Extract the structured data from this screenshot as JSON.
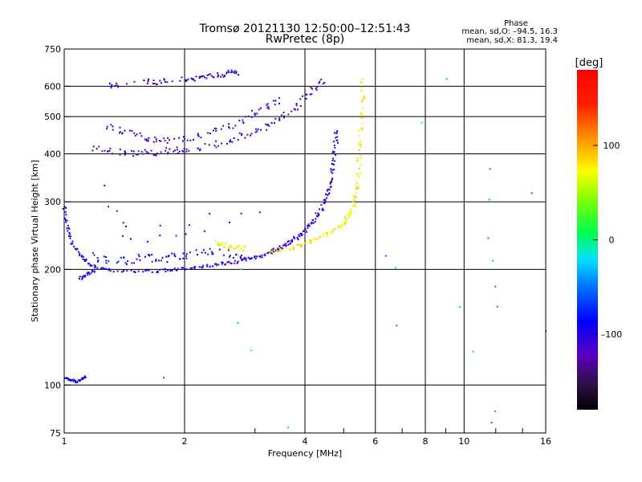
{
  "chart_data": {
    "type": "scatter",
    "title": "Tromsø 20121130 12:50:00–12:51:43",
    "subtitle": "RwPretec (8p)",
    "xlabel": "Frequency [MHz]",
    "ylabel": "Stationary phase Virtual Height [km]",
    "x_scale": "log",
    "y_scale": "log",
    "xlim": [
      1,
      16
    ],
    "ylim": [
      75,
      750
    ],
    "x_ticks": [
      1,
      2,
      4,
      6,
      8,
      10,
      16
    ],
    "y_ticks": [
      75,
      100,
      200,
      300,
      400,
      500,
      600,
      750
    ],
    "grid": true,
    "phase_stats": {
      "heading": "Phase",
      "line1": "mean, sd,O: –94.5, 16.3",
      "line2": "mean, sd,X:  81.3, 19.4"
    },
    "colorbar": {
      "label": "[deg]",
      "range": [
        -180,
        180
      ],
      "ticks": [
        {
          "value": 100,
          "label": "100"
        },
        {
          "value": 0,
          "label": "0"
        },
        {
          "value": -100,
          "label": "–100"
        }
      ]
    },
    "traces": [
      {
        "name": "",
        "phase": -105,
        "spread": 3,
        "points": [
          [
            1.0,
            290
          ],
          [
            1.01,
            270
          ],
          [
            1.02,
            255
          ],
          [
            1.03,
            245
          ],
          [
            1.05,
            232
          ],
          [
            1.07,
            225
          ],
          [
            1.1,
            218
          ],
          [
            1.13,
            212
          ],
          [
            1.16,
            206
          ],
          [
            1.2,
            203
          ],
          [
            1.25,
            200
          ],
          [
            1.3,
            199
          ],
          [
            1.4,
            198
          ],
          [
            1.5,
            197
          ],
          [
            1.6,
            198
          ],
          [
            1.7,
            198
          ],
          [
            1.8,
            199
          ],
          [
            1.9,
            200
          ],
          [
            2.0,
            201
          ],
          [
            2.1,
            202
          ],
          [
            2.2,
            203
          ],
          [
            2.3,
            204
          ],
          [
            2.4,
            205
          ],
          [
            2.5,
            207
          ],
          [
            2.6,
            208
          ],
          [
            2.7,
            209
          ],
          [
            2.8,
            211
          ],
          [
            2.9,
            213
          ],
          [
            3.0,
            215
          ],
          [
            3.1,
            217
          ],
          [
            3.2,
            219
          ],
          [
            3.3,
            222
          ],
          [
            3.4,
            225
          ]
        ]
      },
      {
        "name": "",
        "phase": -110,
        "spread": 4,
        "points": [
          [
            3.3,
            223
          ],
          [
            3.4,
            226
          ],
          [
            3.5,
            229
          ],
          [
            3.6,
            233
          ],
          [
            3.7,
            237
          ],
          [
            3.8,
            242
          ],
          [
            3.9,
            247
          ],
          [
            4.0,
            253
          ],
          [
            4.1,
            260
          ],
          [
            4.2,
            268
          ],
          [
            4.3,
            277
          ],
          [
            4.4,
            288
          ],
          [
            4.5,
            300
          ],
          [
            4.55,
            312
          ],
          [
            4.6,
            325
          ],
          [
            4.65,
            340
          ],
          [
            4.7,
            360
          ],
          [
            4.72,
            380
          ],
          [
            4.75,
            405
          ],
          [
            4.78,
            430
          ],
          [
            4.8,
            455
          ]
        ]
      },
      {
        "name": "",
        "phase": 90,
        "spread": 4,
        "points": [
          [
            3.3,
            222
          ],
          [
            3.5,
            225
          ],
          [
            3.7,
            228
          ],
          [
            3.9,
            232
          ],
          [
            4.1,
            236
          ],
          [
            4.3,
            241
          ],
          [
            4.5,
            246
          ],
          [
            4.7,
            252
          ],
          [
            4.9,
            258
          ],
          [
            5.0,
            264
          ],
          [
            5.1,
            272
          ],
          [
            5.2,
            282
          ],
          [
            5.3,
            295
          ],
          [
            5.35,
            310
          ],
          [
            5.4,
            330
          ],
          [
            5.45,
            355
          ],
          [
            5.48,
            385
          ],
          [
            5.5,
            420
          ],
          [
            5.52,
            460
          ],
          [
            5.55,
            510
          ],
          [
            5.57,
            560
          ],
          [
            5.58,
            620
          ]
        ]
      },
      {
        "name": "",
        "phase": -120,
        "spread": 6,
        "points": [
          [
            1.2,
            410
          ],
          [
            1.3,
            405
          ],
          [
            1.4,
            403
          ],
          [
            1.5,
            402
          ],
          [
            1.6,
            403
          ],
          [
            1.7,
            404
          ],
          [
            1.8,
            406
          ],
          [
            1.9,
            408
          ],
          [
            2.0,
            410
          ],
          [
            2.2,
            416
          ],
          [
            2.4,
            424
          ],
          [
            2.6,
            433
          ],
          [
            2.8,
            444
          ],
          [
            3.0,
            456
          ],
          [
            3.2,
            470
          ],
          [
            3.4,
            486
          ],
          [
            3.6,
            505
          ],
          [
            3.8,
            530
          ],
          [
            4.0,
            560
          ],
          [
            4.2,
            590
          ],
          [
            4.4,
            620
          ]
        ]
      },
      {
        "name": "",
        "phase": -115,
        "spread": 6,
        "points": [
          [
            1.3,
            470
          ],
          [
            1.4,
            460
          ],
          [
            1.5,
            450
          ],
          [
            1.6,
            440
          ],
          [
            1.7,
            435
          ],
          [
            1.8,
            432
          ],
          [
            2.0,
            435
          ],
          [
            2.2,
            445
          ],
          [
            2.4,
            460
          ],
          [
            2.6,
            475
          ],
          [
            2.8,
            490
          ],
          [
            3.0,
            510
          ],
          [
            3.2,
            530
          ],
          [
            3.4,
            550
          ]
        ]
      },
      {
        "name": "",
        "phase": -115,
        "spread": 5,
        "points": [
          [
            1.3,
            600
          ],
          [
            1.35,
            602
          ],
          [
            1.6,
            620
          ],
          [
            1.7,
            615
          ],
          [
            1.8,
            618
          ],
          [
            2.0,
            625
          ],
          [
            2.1,
            628
          ],
          [
            2.2,
            630
          ],
          [
            2.3,
            635
          ],
          [
            2.4,
            640
          ],
          [
            2.5,
            645
          ],
          [
            2.6,
            650
          ],
          [
            2.7,
            652
          ]
        ]
      },
      {
        "name": "",
        "phase": -100,
        "spread": 12,
        "points": [
          [
            1.25,
            320
          ],
          [
            1.3,
            300
          ],
          [
            1.35,
            290
          ],
          [
            1.38,
            270
          ],
          [
            1.4,
            255
          ],
          [
            1.45,
            245
          ],
          [
            1.5,
            240
          ],
          [
            1.6,
            245
          ],
          [
            1.7,
            255
          ],
          [
            1.8,
            250
          ],
          [
            1.9,
            245
          ],
          [
            2.0,
            250
          ],
          [
            2.1,
            255
          ],
          [
            2.2,
            260
          ],
          [
            2.4,
            270
          ],
          [
            2.6,
            275
          ],
          [
            2.8,
            270
          ],
          [
            3.0,
            280
          ]
        ]
      },
      {
        "name": "",
        "phase": -100,
        "spread": 8,
        "points": [
          [
            1.2,
            215
          ],
          [
            1.3,
            212
          ],
          [
            1.4,
            210
          ],
          [
            1.5,
            213
          ],
          [
            1.6,
            216
          ],
          [
            1.7,
            214
          ],
          [
            1.8,
            212
          ],
          [
            1.9,
            215
          ],
          [
            2.0,
            218
          ],
          [
            2.2,
            222
          ],
          [
            2.4,
            225
          ],
          [
            2.6,
            220
          ],
          [
            2.8,
            218
          ]
        ]
      },
      {
        "name": "",
        "phase": -98,
        "spread": 2,
        "points": [
          [
            1.01,
            104
          ],
          [
            1.03,
            103
          ],
          [
            1.05,
            103
          ],
          [
            1.07,
            102
          ],
          [
            1.09,
            103
          ],
          [
            1.11,
            104
          ],
          [
            1.13,
            105
          ]
        ]
      },
      {
        "name": "",
        "phase": -105,
        "spread": 3,
        "points": [
          [
            1.1,
            190
          ],
          [
            1.12,
            192
          ],
          [
            1.15,
            196
          ],
          [
            1.18,
            198
          ]
        ]
      },
      {
        "name": "",
        "phase": 85,
        "spread": 5,
        "points": [
          [
            2.4,
            235
          ],
          [
            2.5,
            232
          ],
          [
            2.6,
            230
          ],
          [
            2.7,
            228
          ],
          [
            2.8,
            226
          ]
        ]
      },
      {
        "name": "",
        "phase": -40,
        "spread": 20,
        "points": [
          [
            6.5,
            230
          ],
          [
            6.5,
            210
          ],
          [
            8.3,
            470
          ],
          [
            8.8,
            590
          ],
          [
            11.0,
            120
          ],
          [
            11.5,
            350
          ],
          [
            11.8,
            300
          ],
          [
            12.0,
            250
          ],
          [
            12.0,
            210
          ],
          [
            12.0,
            180
          ],
          [
            12.0,
            150
          ],
          [
            12.3,
            90
          ],
          [
            12.2,
            85
          ],
          [
            14.0,
            310
          ],
          [
            15.5,
            140
          ],
          [
            3.8,
            82
          ],
          [
            2.85,
            190
          ],
          [
            2.8,
            130
          ],
          [
            2.9,
            140
          ],
          [
            1.75,
            110
          ],
          [
            9.6,
            170
          ],
          [
            6.4,
            150
          ]
        ]
      }
    ]
  }
}
